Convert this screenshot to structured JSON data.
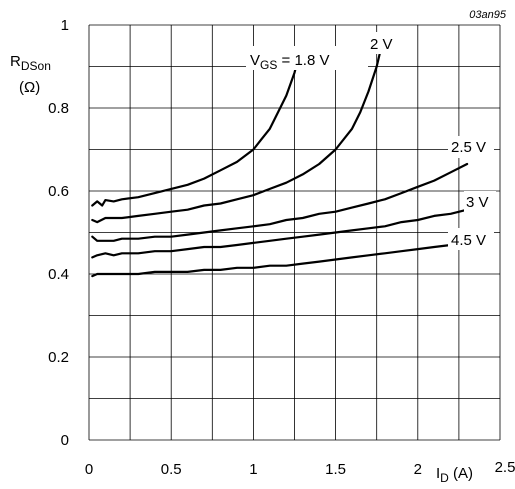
{
  "chart_data": {
    "type": "line",
    "figure_code": "03an95",
    "ylabel": {
      "main": "R",
      "sub": "DSon",
      "unit": "(Ω)"
    },
    "xlabel": {
      "main": "I",
      "sub": "D",
      "unit": "(A)"
    },
    "xlim": [
      0,
      2.5
    ],
    "ylim": [
      0,
      1
    ],
    "x_ticks": [
      "0",
      "0.5",
      "1",
      "1.5",
      "2",
      "2.5"
    ],
    "y_ticks": [
      "0",
      "0.2",
      "0.4",
      "0.6",
      "0.8",
      "1"
    ],
    "grid": true,
    "series": [
      {
        "name": "1.8 V",
        "x": [
          0.02,
          0.05,
          0.08,
          0.1,
          0.15,
          0.2,
          0.3,
          0.4,
          0.5,
          0.6,
          0.7,
          0.8,
          0.9,
          1.0,
          1.05,
          1.1,
          1.15,
          1.2,
          1.25,
          1.28
        ],
        "y": [
          0.565,
          0.575,
          0.565,
          0.578,
          0.575,
          0.58,
          0.585,
          0.595,
          0.605,
          0.615,
          0.63,
          0.65,
          0.67,
          0.7,
          0.725,
          0.75,
          0.79,
          0.83,
          0.885,
          0.93
        ]
      },
      {
        "name": "2 V",
        "x": [
          0.02,
          0.05,
          0.1,
          0.2,
          0.3,
          0.4,
          0.5,
          0.6,
          0.7,
          0.8,
          0.9,
          1.0,
          1.1,
          1.2,
          1.3,
          1.4,
          1.5,
          1.6,
          1.65,
          1.7,
          1.75,
          1.78
        ],
        "y": [
          0.53,
          0.525,
          0.535,
          0.535,
          0.54,
          0.545,
          0.55,
          0.555,
          0.565,
          0.57,
          0.58,
          0.59,
          0.605,
          0.62,
          0.64,
          0.665,
          0.7,
          0.75,
          0.79,
          0.84,
          0.9,
          0.95
        ]
      },
      {
        "name": "2.5 V",
        "x": [
          0.02,
          0.05,
          0.1,
          0.15,
          0.2,
          0.3,
          0.4,
          0.5,
          0.6,
          0.7,
          0.8,
          0.9,
          1.0,
          1.1,
          1.2,
          1.3,
          1.4,
          1.5,
          1.6,
          1.7,
          1.8,
          1.9,
          2.0,
          2.1,
          2.2,
          2.3
        ],
        "y": [
          0.49,
          0.48,
          0.48,
          0.48,
          0.485,
          0.485,
          0.49,
          0.49,
          0.495,
          0.5,
          0.505,
          0.51,
          0.515,
          0.52,
          0.53,
          0.535,
          0.545,
          0.55,
          0.56,
          0.57,
          0.58,
          0.595,
          0.61,
          0.625,
          0.645,
          0.665
        ]
      },
      {
        "name": "3 V",
        "x": [
          0.02,
          0.05,
          0.1,
          0.15,
          0.2,
          0.3,
          0.4,
          0.5,
          0.6,
          0.7,
          0.8,
          0.9,
          1.0,
          1.1,
          1.2,
          1.3,
          1.4,
          1.5,
          1.6,
          1.7,
          1.8,
          1.9,
          2.0,
          2.1,
          2.2,
          2.3
        ],
        "y": [
          0.44,
          0.445,
          0.45,
          0.445,
          0.45,
          0.45,
          0.455,
          0.455,
          0.46,
          0.465,
          0.465,
          0.47,
          0.475,
          0.48,
          0.485,
          0.49,
          0.495,
          0.5,
          0.505,
          0.51,
          0.515,
          0.525,
          0.53,
          0.54,
          0.545,
          0.555
        ]
      },
      {
        "name": "4.5 V",
        "x": [
          0.02,
          0.05,
          0.1,
          0.2,
          0.3,
          0.4,
          0.5,
          0.6,
          0.7,
          0.8,
          0.9,
          1.0,
          1.1,
          1.2,
          1.3,
          1.4,
          1.5,
          1.6,
          1.7,
          1.8,
          1.9,
          2.0,
          2.1,
          2.2
        ],
        "y": [
          0.395,
          0.4,
          0.4,
          0.4,
          0.4,
          0.405,
          0.405,
          0.405,
          0.41,
          0.41,
          0.415,
          0.415,
          0.42,
          0.42,
          0.425,
          0.43,
          0.435,
          0.44,
          0.445,
          0.45,
          0.455,
          0.46,
          0.465,
          0.47
        ]
      }
    ],
    "curve_labels": [
      {
        "prefix": "V",
        "sub": "GS",
        "text": " = 1.8 V"
      },
      {
        "text": "2 V"
      },
      {
        "text": "2.5 V"
      },
      {
        "text": "3 V"
      },
      {
        "text": "4.5 V"
      }
    ]
  }
}
